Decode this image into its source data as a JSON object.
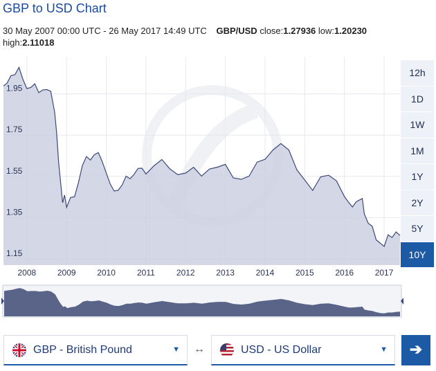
{
  "header": {
    "title": "GBP to USD Chart",
    "range_text": "30 May 2007 00:00 UTC - 26 May 2017 14:49 UTC",
    "pair": "GBP/USD",
    "close_label": "close:",
    "close_value": "1.27936",
    "low_label": "low:",
    "low_value": "1.20230",
    "high_label": "high:",
    "high_value": "2.11018"
  },
  "range_buttons": [
    {
      "label": "12h",
      "active": false
    },
    {
      "label": "1D",
      "active": false
    },
    {
      "label": "1W",
      "active": false
    },
    {
      "label": "1M",
      "active": false
    },
    {
      "label": "1Y",
      "active": false
    },
    {
      "label": "2Y",
      "active": false
    },
    {
      "label": "5Y",
      "active": false
    },
    {
      "label": "10Y",
      "active": true
    }
  ],
  "converter": {
    "from_label": "GBP - British Pound",
    "to_label": "USD - US Dollar",
    "swap_symbol": "↔",
    "go_symbol": "➔"
  },
  "colors": {
    "accent": "#1d5aa6",
    "title": "#1a4ba0",
    "line": "#3c4878",
    "area": "#c9cee0",
    "navigator": "#5a6488"
  },
  "chart_data": {
    "type": "area",
    "title": "GBP to USD Chart",
    "ylim": [
      1.12,
      2.13
    ],
    "xlim": [
      2007.41,
      2017.4
    ],
    "y_ticks": [
      "1.15",
      "1.35",
      "1.55",
      "1.75",
      "1.95"
    ],
    "x_ticks": [
      "2008",
      "2009",
      "2010",
      "2011",
      "2012",
      "2013",
      "2014",
      "2015",
      "2016",
      "2017"
    ],
    "grid": true,
    "series": [
      {
        "x": [
          2007.41,
          2007.5,
          2007.6,
          2007.7,
          2007.8,
          2007.9,
          2008.0,
          2008.1,
          2008.2,
          2008.3,
          2008.4,
          2008.5,
          2008.6,
          2008.7,
          2008.75,
          2008.8,
          2008.85,
          2008.9,
          2008.95,
          2009.0,
          2009.1,
          2009.2,
          2009.3,
          2009.4,
          2009.5,
          2009.6,
          2009.7,
          2009.8,
          2009.9,
          2010.0,
          2010.1,
          2010.2,
          2010.3,
          2010.4,
          2010.5,
          2010.6,
          2010.7,
          2010.8,
          2010.9,
          2011.0,
          2011.2,
          2011.4,
          2011.6,
          2011.8,
          2012.0,
          2012.2,
          2012.4,
          2012.6,
          2012.8,
          2013.0,
          2013.2,
          2013.4,
          2013.6,
          2013.8,
          2014.0,
          2014.2,
          2014.4,
          2014.6,
          2014.8,
          2015.0,
          2015.2,
          2015.4,
          2015.6,
          2015.8,
          2016.0,
          2016.1,
          2016.2,
          2016.3,
          2016.45,
          2016.5,
          2016.6,
          2016.7,
          2016.8,
          2016.9,
          2017.0,
          2017.1,
          2017.2,
          2017.3,
          2017.4
        ],
        "y": [
          1.98,
          2.0,
          2.02,
          2.05,
          2.08,
          2.04,
          1.97,
          1.98,
          1.98,
          1.96,
          1.97,
          1.99,
          1.96,
          1.86,
          1.74,
          1.62,
          1.52,
          1.44,
          1.46,
          1.4,
          1.43,
          1.45,
          1.52,
          1.62,
          1.65,
          1.63,
          1.64,
          1.66,
          1.62,
          1.58,
          1.52,
          1.48,
          1.47,
          1.5,
          1.55,
          1.55,
          1.57,
          1.59,
          1.58,
          1.55,
          1.6,
          1.64,
          1.6,
          1.56,
          1.56,
          1.58,
          1.55,
          1.59,
          1.61,
          1.61,
          1.54,
          1.52,
          1.55,
          1.62,
          1.65,
          1.68,
          1.71,
          1.66,
          1.58,
          1.53,
          1.5,
          1.55,
          1.56,
          1.51,
          1.45,
          1.42,
          1.42,
          1.43,
          1.45,
          1.35,
          1.32,
          1.3,
          1.26,
          1.23,
          1.22,
          1.25,
          1.25,
          1.27,
          1.28
        ]
      }
    ]
  }
}
